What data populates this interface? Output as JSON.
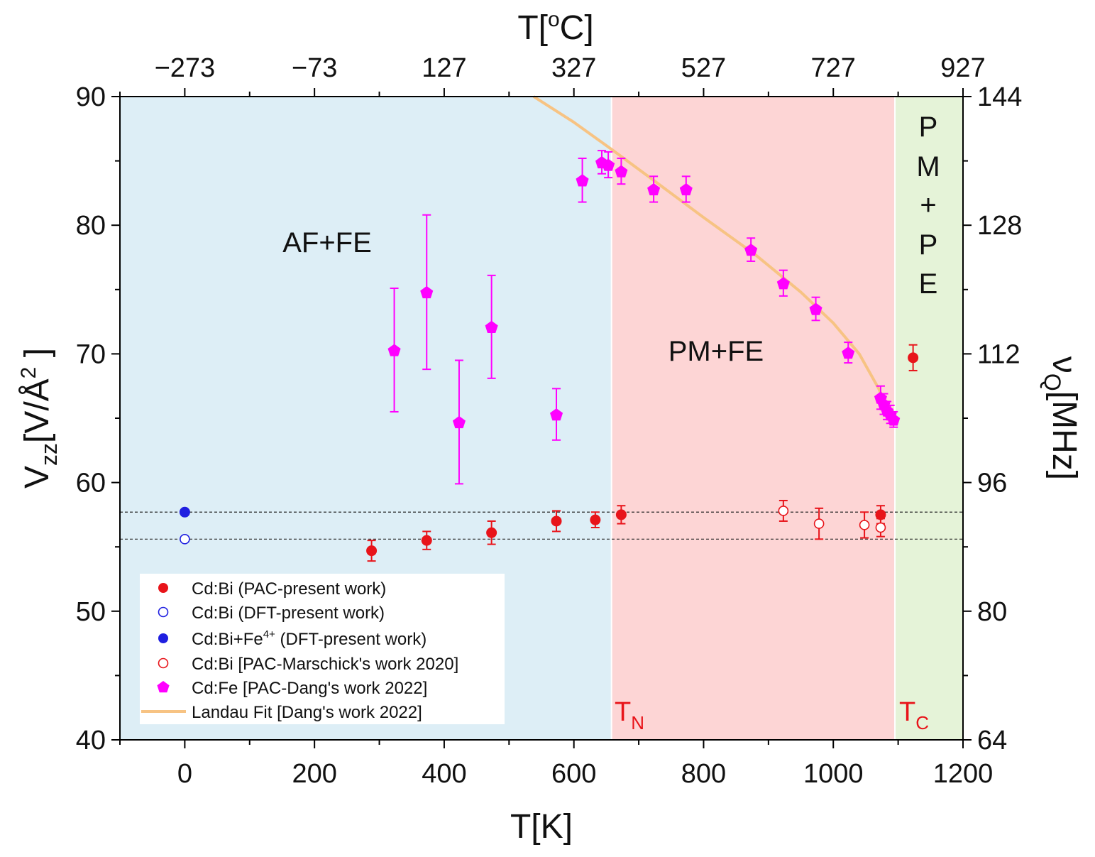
{
  "chart_data": {
    "type": "scatter",
    "bottom_axis": {
      "label_main": "T[K]",
      "range": [
        -100,
        1200
      ],
      "ticks": [
        0,
        200,
        400,
        600,
        800,
        1000,
        1200
      ],
      "tick_labels": [
        "0",
        "200",
        "400",
        "600",
        "800",
        "1000",
        "1200"
      ]
    },
    "top_axis": {
      "label_main": "T[",
      "label_sup": "o",
      "label_tail": "C]",
      "ticks_kelvin": [
        0,
        200,
        400,
        600,
        800,
        1000,
        1200
      ],
      "tick_labels": [
        "−273",
        "−73",
        "127",
        "327",
        "527",
        "727",
        "927"
      ]
    },
    "left_axis": {
      "label_main": "V",
      "label_sub": "zz",
      "label_mid": "[V/Å",
      "label_sup": "2",
      "label_tail": " ]",
      "range": [
        40,
        90
      ],
      "ticks": [
        40,
        50,
        60,
        70,
        80,
        90
      ],
      "tick_labels": [
        "40",
        "50",
        "60",
        "70",
        "80",
        "90"
      ]
    },
    "right_axis": {
      "label_main": "ν",
      "label_sub": "Q",
      "label_tail": "[MHz]",
      "ticks_vzz": [
        40,
        50,
        60,
        70,
        80,
        90
      ],
      "tick_labels": [
        "64",
        "80",
        "96",
        "112",
        "128",
        "144"
      ]
    },
    "regions": [
      {
        "name": "af-fe",
        "from": -100,
        "to": 658,
        "color": "#ddeef6"
      },
      {
        "name": "pm-fe",
        "from": 658,
        "to": 1095,
        "color": "#fdd5d5"
      },
      {
        "name": "pm-pe",
        "from": 1095,
        "to": 1200,
        "color": "#e5f3d8"
      }
    ],
    "region_labels": {
      "af_fe": "AF+FE",
      "pm_fe": "PM+FE",
      "pm_pe_lines": [
        "P",
        "M",
        "+",
        "P",
        "E"
      ]
    },
    "transition_labels": {
      "tn_main": "T",
      "tn_sub": "N",
      "tc_main": "T",
      "tc_sub": "C",
      "color": "#e8141a"
    },
    "reference_lines": [
      57.7,
      55.6
    ],
    "series": [
      {
        "name": "Cd:Bi (PAC-present work)",
        "marker": "filled-circle",
        "color": "#e8141a",
        "points": [
          {
            "x": 288,
            "y": 54.7,
            "err": 0.8
          },
          {
            "x": 373,
            "y": 55.5,
            "err": 0.7
          },
          {
            "x": 473,
            "y": 56.1,
            "err": 0.9
          },
          {
            "x": 573,
            "y": 57.0,
            "err": 0.8
          },
          {
            "x": 633,
            "y": 57.1,
            "err": 0.6
          },
          {
            "x": 673,
            "y": 57.5,
            "err": 0.7
          },
          {
            "x": 1073,
            "y": 57.5,
            "err": 0.7
          },
          {
            "x": 1123,
            "y": 69.7,
            "err": 1.0
          }
        ]
      },
      {
        "name": "Cd:Bi (DFT-present work)",
        "marker": "open-circle",
        "color": "#1f1fe0",
        "points": [
          {
            "x": 0,
            "y": 55.6
          }
        ]
      },
      {
        "name_main": "Cd:Bi+Fe",
        "name_sup": "4+",
        "name_tail": " (DFT-present work)",
        "marker": "filled-circle",
        "color": "#1f1fe0",
        "points": [
          {
            "x": 0,
            "y": 57.7
          }
        ]
      },
      {
        "name": "Cd:Bi [PAC-Marschick's work 2020]",
        "marker": "open-circle",
        "color": "#e8141a",
        "points": [
          {
            "x": 923,
            "y": 57.8,
            "err": 0.8
          },
          {
            "x": 978,
            "y": 56.8,
            "err": 1.2
          },
          {
            "x": 1048,
            "y": 56.7,
            "err": 1.0
          },
          {
            "x": 1073,
            "y": 56.5,
            "err": 0.7
          }
        ]
      },
      {
        "name": "Cd:Fe [PAC-Dang's work 2022]",
        "marker": "pentagon",
        "color": "#ff00ff",
        "points": [
          {
            "x": 323,
            "y": 70.3,
            "err": 4.8
          },
          {
            "x": 373,
            "y": 74.8,
            "err": 6.0
          },
          {
            "x": 423,
            "y": 64.7,
            "err": 4.8
          },
          {
            "x": 473,
            "y": 72.1,
            "err": 4.0
          },
          {
            "x": 573,
            "y": 65.3,
            "err": 2.0
          },
          {
            "x": 613,
            "y": 83.5,
            "err": 1.7
          },
          {
            "x": 643,
            "y": 84.9,
            "err": 0.9
          },
          {
            "x": 653,
            "y": 84.7,
            "err": 1.0
          },
          {
            "x": 673,
            "y": 84.2,
            "err": 1.0
          },
          {
            "x": 723,
            "y": 82.8,
            "err": 1.0
          },
          {
            "x": 773,
            "y": 82.8,
            "err": 1.0
          },
          {
            "x": 873,
            "y": 78.1,
            "err": 0.9
          },
          {
            "x": 923,
            "y": 75.5,
            "err": 1.0
          },
          {
            "x": 973,
            "y": 73.5,
            "err": 0.9
          },
          {
            "x": 1023,
            "y": 70.1,
            "err": 0.8
          },
          {
            "x": 1073,
            "y": 66.6,
            "err": 0.9
          },
          {
            "x": 1078,
            "y": 66.1,
            "err": 0.8
          },
          {
            "x": 1083,
            "y": 65.6,
            "err": 0.7
          },
          {
            "x": 1088,
            "y": 65.3,
            "err": 0.7
          },
          {
            "x": 1093,
            "y": 64.9,
            "err": 0.6
          }
        ]
      },
      {
        "name": "Landau Fit [Dang's work 2022]",
        "marker": "line",
        "color": "#f7c383",
        "points": [
          {
            "x": 538,
            "y": 90.0
          },
          {
            "x": 600,
            "y": 88.0
          },
          {
            "x": 658,
            "y": 85.9
          },
          {
            "x": 720,
            "y": 83.6
          },
          {
            "x": 800,
            "y": 80.6
          },
          {
            "x": 880,
            "y": 77.7
          },
          {
            "x": 950,
            "y": 74.8
          },
          {
            "x": 1000,
            "y": 72.4
          },
          {
            "x": 1040,
            "y": 70.0
          },
          {
            "x": 1070,
            "y": 67.3
          },
          {
            "x": 1090,
            "y": 65.1
          },
          {
            "x": 1095,
            "y": 64.6
          }
        ]
      }
    ]
  }
}
